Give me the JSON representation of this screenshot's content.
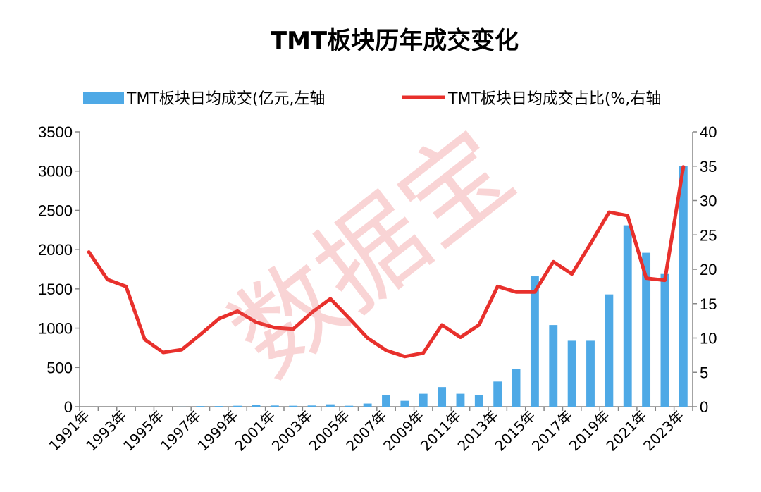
{
  "chart_data": {
    "type": "bar+line",
    "title": "TMT板块历年成交变化",
    "watermark": "数据宝",
    "categories": [
      "1991年",
      "1992年",
      "1993年",
      "1994年",
      "1995年",
      "1996年",
      "1997年",
      "1998年",
      "1999年",
      "2000年",
      "2001年",
      "2002年",
      "2003年",
      "2004年",
      "2005年",
      "2006年",
      "2007年",
      "2008年",
      "2009年",
      "2010年",
      "2011年",
      "2012年",
      "2013年",
      "2014年",
      "2015年",
      "2016年",
      "2017年",
      "2018年",
      "2019年",
      "2020年",
      "2021年",
      "2022年",
      "2023年"
    ],
    "x_tick_labels": [
      "1991年",
      "1993年",
      "1995年",
      "1997年",
      "1999年",
      "2001年",
      "2003年",
      "2005年",
      "2007年",
      "2009年",
      "2011年",
      "2013年",
      "2015年",
      "2017年",
      "2019年",
      "2021年",
      "2023年"
    ],
    "series": [
      {
        "name": "TMT板块日均成交(亿元,左轴",
        "type": "bar",
        "axis": "left",
        "color": "#4ea9e6",
        "values": [
          0,
          0,
          0,
          0,
          0,
          1,
          8,
          8,
          12,
          25,
          15,
          12,
          15,
          30,
          12,
          40,
          150,
          75,
          165,
          250,
          165,
          150,
          320,
          480,
          1660,
          1040,
          840,
          840,
          1430,
          2310,
          1960,
          1690,
          3060
        ]
      },
      {
        "name": "TMT板块日均成交占比(%,右轴",
        "type": "line",
        "axis": "right",
        "color": "#e8302c",
        "values": [
          22.5,
          18.5,
          17.5,
          9.8,
          7.9,
          8.3,
          10.5,
          12.8,
          13.9,
          12.3,
          11.5,
          11.3,
          13.7,
          15.7,
          12.9,
          10.0,
          8.2,
          7.3,
          7.8,
          11.9,
          10.1,
          11.9,
          17.5,
          16.7,
          16.7,
          21.1,
          19.3,
          23.7,
          28.3,
          27.8,
          18.7,
          18.4,
          34.9
        ]
      }
    ],
    "y_left": {
      "ylim": [
        0,
        3500
      ],
      "ticks": [
        0,
        500,
        1000,
        1500,
        2000,
        2500,
        3000,
        3500
      ]
    },
    "y_right": {
      "ylim": [
        0,
        40
      ],
      "ticks": [
        0,
        5,
        10,
        15,
        20,
        25,
        30,
        35,
        40
      ]
    },
    "grid": false,
    "legend_position": "top"
  }
}
